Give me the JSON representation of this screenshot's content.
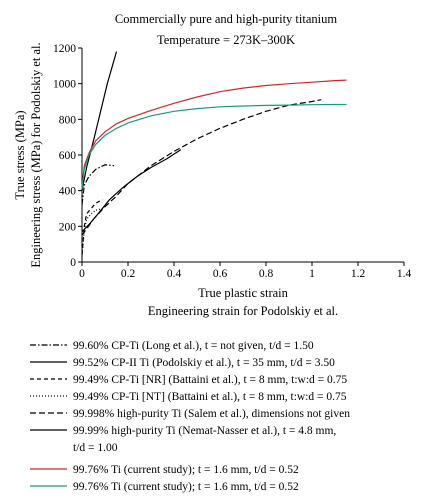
{
  "chart_data": {
    "type": "line",
    "title": "Commercially pure and high-purity titanium",
    "subtitle": "Temperature = 273K–300K",
    "xlabel": "True plastic strain",
    "xlabel2": "Engineering strain for Podolskiy et al.",
    "ylabel": "True stress (MPa)",
    "ylabel2": "Engineering stress (MPa) for Podolskiy et al.",
    "xlim": [
      0,
      1.4
    ],
    "ylim": [
      0,
      1200
    ],
    "xticks": [
      "0",
      "0.2",
      "0.4",
      "0.6",
      "0.8",
      "1",
      "1.2",
      "1.4"
    ],
    "yticks": [
      "0",
      "200",
      "400",
      "600",
      "800",
      "1000",
      "1200"
    ],
    "grid": false,
    "legend_position": "below",
    "series": [
      {
        "name": "99.60% CP-Ti (Long et al.), t = not given, t/d = 1.50",
        "name_lines": [
          "99.60% CP-Ti (Long et al.), t = not given, t/d = 1.50"
        ],
        "color": "#000000",
        "dash": "dashdot",
        "points": [
          [
            0.0,
            320
          ],
          [
            0.01,
            430
          ],
          [
            0.03,
            480
          ],
          [
            0.06,
            520
          ],
          [
            0.1,
            545
          ],
          [
            0.14,
            540
          ]
        ]
      },
      {
        "name": "99.52% CP-II Ti (Podolskiy et al.), t = 35 mm, t/d = 3.50",
        "name_lines": [
          "99.52% CP-II Ti (Podolskiy et al.), t = 35 mm, t/d = 3.50"
        ],
        "color": "#000000",
        "dash": "solid",
        "points": [
          [
            0.0,
            400
          ],
          [
            0.02,
            530
          ],
          [
            0.05,
            680
          ],
          [
            0.08,
            840
          ],
          [
            0.11,
            1000
          ],
          [
            0.15,
            1180
          ]
        ]
      },
      {
        "name": "99.49% CP-Ti [NR] (Battaini et al.), t = 8 mm, t:w:d = 0.75",
        "name_lines": [
          "99.49% CP-Ti [NR] (Battaini et al.), t = 8 mm, t:w:d = 0.75"
        ],
        "color": "#000000",
        "dash": "dash",
        "points": [
          [
            0.0,
            40
          ],
          [
            0.01,
            200
          ],
          [
            0.02,
            270
          ],
          [
            0.04,
            300
          ],
          [
            0.06,
            330
          ],
          [
            0.09,
            350
          ]
        ]
      },
      {
        "name": "99.49% CP-Ti [NT] (Battaini et al.), t = 8 mm, t:w:d = 0.75",
        "name_lines": [
          "99.49% CP-Ti [NT] (Battaini et al.), t = 8 mm, t:w:d = 0.75"
        ],
        "color": "#000000",
        "dash": "dot",
        "points": [
          [
            0.0,
            30
          ],
          [
            0.01,
            180
          ],
          [
            0.02,
            240
          ],
          [
            0.04,
            270
          ],
          [
            0.06,
            290
          ],
          [
            0.09,
            300
          ]
        ]
      },
      {
        "name": "99.998% high-purity Ti (Salem et al.), dimensions not given",
        "name_lines": [
          "99.998% high-purity Ti (Salem et al.), dimensions not given"
        ],
        "color": "#000000",
        "dash": "longdash",
        "points": [
          [
            0.0,
            150
          ],
          [
            0.05,
            240
          ],
          [
            0.1,
            310
          ],
          [
            0.15,
            370
          ],
          [
            0.2,
            440
          ],
          [
            0.3,
            540
          ],
          [
            0.4,
            620
          ],
          [
            0.5,
            690
          ],
          [
            0.6,
            750
          ],
          [
            0.7,
            800
          ],
          [
            0.8,
            845
          ],
          [
            0.9,
            880
          ],
          [
            1.0,
            900
          ],
          [
            1.04,
            910
          ]
        ]
      },
      {
        "name": "99.99% high-purity Ti (Nemat-Nasser et al.), t = 4.8 mm, t/d = 1.00",
        "name_lines": [
          "99.99% high-purity Ti (Nemat-Nasser et al.), t = 4.8 mm,",
          "t/d = 1.00"
        ],
        "color": "#000000",
        "dash": "solid",
        "points": [
          [
            0.0,
            170
          ],
          [
            0.03,
            210
          ],
          [
            0.07,
            270
          ],
          [
            0.12,
            350
          ],
          [
            0.18,
            420
          ],
          [
            0.24,
            480
          ],
          [
            0.3,
            530
          ],
          [
            0.37,
            580
          ],
          [
            0.43,
            630
          ]
        ]
      },
      {
        "name": "99.76% Ti (current study); t = 1.6 mm, t/d = 0.52",
        "name_lines": [
          "99.76% Ti (current study); t = 1.6 mm, t/d = 0.52"
        ],
        "color": "#cc2a2a",
        "dash": "solid",
        "points": [
          [
            0.0,
            420
          ],
          [
            0.01,
            540
          ],
          [
            0.03,
            610
          ],
          [
            0.06,
            680
          ],
          [
            0.1,
            730
          ],
          [
            0.15,
            775
          ],
          [
            0.2,
            805
          ],
          [
            0.3,
            850
          ],
          [
            0.4,
            890
          ],
          [
            0.5,
            925
          ],
          [
            0.6,
            955
          ],
          [
            0.7,
            975
          ],
          [
            0.8,
            990
          ],
          [
            0.9,
            1000
          ],
          [
            1.0,
            1008
          ],
          [
            1.1,
            1017
          ],
          [
            1.15,
            1020
          ]
        ]
      },
      {
        "name": "99.76% Ti (current study); t = 1.6 mm, t/d = 0.52",
        "name_lines": [
          "99.76% Ti (current study); t = 1.6 mm, t/d = 0.52"
        ],
        "color": "#1a9a7a",
        "dash": "solid",
        "points": [
          [
            0.0,
            410
          ],
          [
            0.01,
            520
          ],
          [
            0.03,
            600
          ],
          [
            0.06,
            660
          ],
          [
            0.1,
            710
          ],
          [
            0.15,
            750
          ],
          [
            0.2,
            780
          ],
          [
            0.3,
            820
          ],
          [
            0.4,
            845
          ],
          [
            0.5,
            860
          ],
          [
            0.6,
            870
          ],
          [
            0.7,
            875
          ],
          [
            0.8,
            878
          ],
          [
            0.9,
            880
          ],
          [
            1.0,
            882
          ],
          [
            1.1,
            883
          ],
          [
            1.15,
            883
          ]
        ]
      }
    ]
  }
}
